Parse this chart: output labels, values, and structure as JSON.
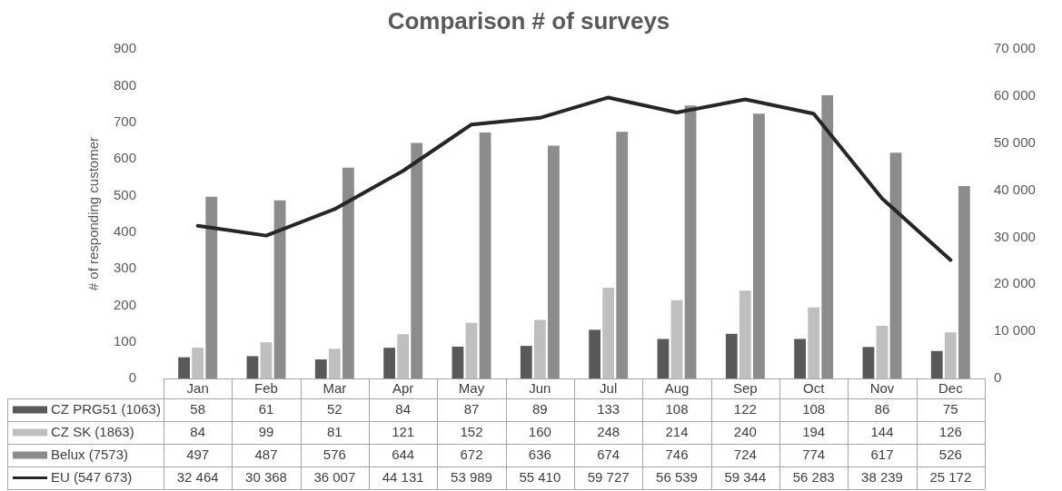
{
  "chart_data": {
    "type": "bar",
    "title": "Comparison # of surveys",
    "ylabel": "# of responding customer",
    "categories": [
      "Jan",
      "Feb",
      "Mar",
      "Apr",
      "May",
      "Jun",
      "Jul",
      "Aug",
      "Sep",
      "Oct",
      "Nov",
      "Dec"
    ],
    "ylim": [
      0,
      900
    ],
    "yticks": [
      0,
      100,
      200,
      300,
      400,
      500,
      600,
      700,
      800,
      900
    ],
    "y2lim": [
      0,
      70000
    ],
    "y2ticks": [
      {
        "value": 0,
        "label": "0"
      },
      {
        "value": 10000,
        "label": "10 000"
      },
      {
        "value": 20000,
        "label": "20 000"
      },
      {
        "value": 30000,
        "label": "30 000"
      },
      {
        "value": 40000,
        "label": "40 000"
      },
      {
        "value": 50000,
        "label": "50 000"
      },
      {
        "value": 60000,
        "label": "60 000"
      },
      {
        "value": 70000,
        "label": "70 000"
      }
    ],
    "legend": "bottom left",
    "marker": "none",
    "series": [
      {
        "name": "CZ PRG51 (1063)",
        "color": "#595959",
        "values": [
          58,
          61,
          52,
          84,
          87,
          89,
          133,
          108,
          122,
          108,
          86,
          75
        ],
        "value_labels": [
          "58",
          "61",
          "52",
          "84",
          "87",
          "89",
          "133",
          "108",
          "122",
          "108",
          "86",
          "75"
        ]
      },
      {
        "name": "CZ SK (1863)",
        "color": "#bfbfbf",
        "values": [
          84,
          99,
          81,
          121,
          152,
          160,
          248,
          214,
          240,
          194,
          144,
          126
        ],
        "value_labels": [
          "84",
          "99",
          "81",
          "121",
          "152",
          "160",
          "248",
          "214",
          "240",
          "194",
          "144",
          "126"
        ]
      },
      {
        "name": "Belux (7573)",
        "color": "#8c8c8c",
        "values": [
          497,
          487,
          576,
          644,
          672,
          636,
          674,
          746,
          724,
          774,
          617,
          526
        ],
        "value_labels": [
          "497",
          "487",
          "576",
          "644",
          "672",
          "636",
          "674",
          "746",
          "724",
          "774",
          "617",
          "526"
        ]
      },
      {
        "name": "EU (547 673)",
        "type": "line",
        "axis": "y2",
        "color": "#262626",
        "values": [
          32464,
          30368,
          36007,
          44131,
          53989,
          55410,
          59727,
          56539,
          59344,
          56283,
          38239,
          25172
        ],
        "value_labels": [
          "32 464",
          "30 368",
          "36 007",
          "44 131",
          "53 989",
          "55 410",
          "59 727",
          "56 539",
          "59 344",
          "56 283",
          "38 239",
          "25 172"
        ]
      }
    ]
  }
}
